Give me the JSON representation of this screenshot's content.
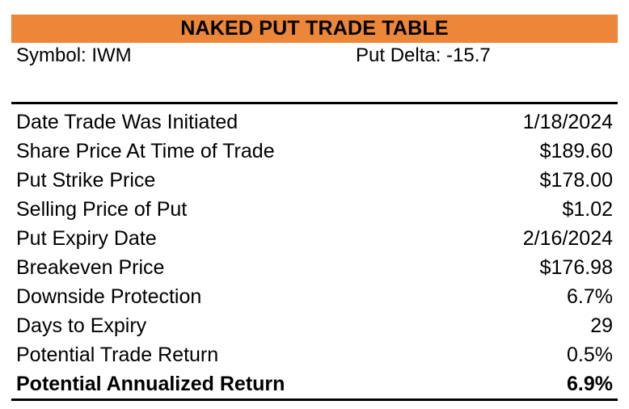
{
  "title": "NAKED PUT TRADE TABLE",
  "colors": {
    "title_bar_bg": "#EC8639",
    "text": "#000000",
    "rule": "#000000"
  },
  "meta": {
    "symbol": "Symbol: IWM",
    "put_delta": "Put Delta: -15.7"
  },
  "rows": [
    {
      "label": "Date Trade Was Initiated",
      "value": "1/18/2024"
    },
    {
      "label": "Share Price At Time of Trade",
      "value": "$189.60"
    },
    {
      "label": "Put Strike Price",
      "value": "$178.00"
    },
    {
      "label": "Selling Price of Put",
      "value": "$1.02"
    },
    {
      "label": "Put Expiry Date",
      "value": "2/16/2024"
    },
    {
      "label": "Breakeven Price",
      "value": "$176.98"
    },
    {
      "label": "Downside Protection",
      "value": "6.7%"
    },
    {
      "label": "Days to Expiry",
      "value": "29"
    },
    {
      "label": "Potential Trade Return",
      "value": "0.5%"
    },
    {
      "label": "Potential Annualized Return",
      "value": "6.9%",
      "bold": true
    }
  ]
}
